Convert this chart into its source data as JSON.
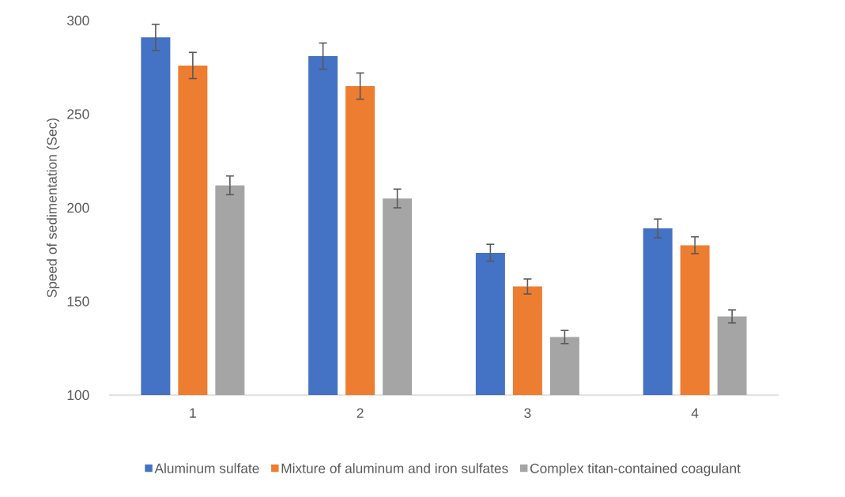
{
  "chart_data": {
    "type": "bar",
    "ylabel": "Speed of sedimentation (Sec)",
    "categories": [
      "1",
      "2",
      "3",
      "4"
    ],
    "series": [
      {
        "name": "Aluminum sulfate",
        "color": "#4472c4",
        "values": [
          291,
          281,
          176,
          189
        ],
        "errors": [
          7,
          7,
          4.5,
          5
        ]
      },
      {
        "name": "Mixture of aluminum and iron sulfates",
        "color": "#ed7d31",
        "values": [
          276,
          265,
          158,
          180
        ],
        "errors": [
          7,
          7,
          4,
          4.5
        ]
      },
      {
        "name": "Complex titan-contained coagulant",
        "color": "#a5a5a5",
        "values": [
          212,
          205,
          131,
          142
        ],
        "errors": [
          5,
          5,
          3.5,
          3.5
        ]
      }
    ],
    "ylim": [
      100,
      300
    ],
    "yticks": [
      100,
      150,
      200,
      250,
      300
    ],
    "legend": "bottom"
  }
}
